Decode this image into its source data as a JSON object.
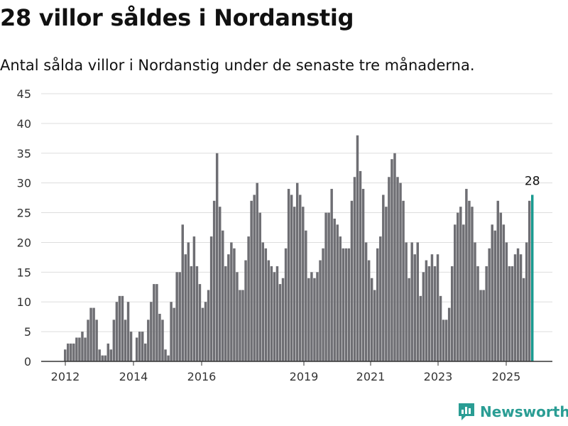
{
  "title": "28 villor såldes i Nordanstig",
  "subtitle": "Antal sålda villor i Nordanstig under de senaste tre månaderna.",
  "brand": "Newsworthy",
  "colors": {
    "bar": "#6e6e73",
    "highlight": "#1a9a90",
    "grid": "#dddddd",
    "axis": "#333333",
    "brand": "#2a9d94"
  },
  "chart_data": {
    "type": "bar",
    "ylim": [
      0,
      45
    ],
    "yticks": [
      0,
      5,
      10,
      15,
      20,
      25,
      30,
      35,
      40,
      45
    ],
    "xticks": [
      "2012",
      "2014",
      "2016",
      "2019",
      "2021",
      "2023",
      "2025"
    ],
    "grid": true,
    "highlight_label": "28",
    "values": [
      2,
      3,
      3,
      3,
      4,
      4,
      5,
      4,
      7,
      9,
      9,
      7,
      2,
      1,
      1,
      3,
      2,
      7,
      10,
      11,
      11,
      7,
      10,
      5,
      0,
      4,
      5,
      5,
      3,
      7,
      10,
      13,
      13,
      8,
      7,
      2,
      1,
      10,
      9,
      15,
      15,
      23,
      18,
      20,
      16,
      21,
      16,
      13,
      9,
      10,
      12,
      21,
      27,
      35,
      26,
      22,
      16,
      18,
      20,
      19,
      15,
      12,
      12,
      17,
      21,
      27,
      28,
      30,
      25,
      20,
      19,
      17,
      16,
      15,
      16,
      13,
      14,
      19,
      29,
      28,
      26,
      30,
      28,
      26,
      22,
      14,
      15,
      14,
      15,
      17,
      19,
      25,
      25,
      29,
      24,
      23,
      21,
      19,
      19,
      19,
      27,
      31,
      38,
      32,
      29,
      20,
      17,
      14,
      12,
      19,
      21,
      28,
      26,
      31,
      34,
      35,
      31,
      30,
      27,
      20,
      14,
      20,
      18,
      20,
      11,
      15,
      17,
      16,
      18,
      16,
      18,
      11,
      7,
      7,
      9,
      16,
      23,
      25,
      26,
      23,
      29,
      27,
      26,
      20,
      16,
      12,
      12,
      16,
      19,
      23,
      22,
      27,
      25,
      23,
      20,
      16,
      16,
      18,
      19,
      18,
      14,
      20,
      27,
      28
    ]
  }
}
